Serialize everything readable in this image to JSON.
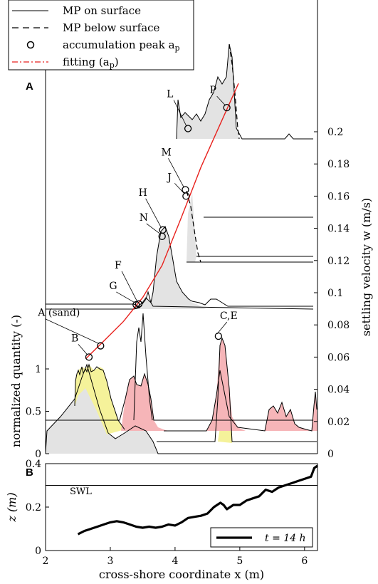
{
  "panel_a_label": "A",
  "panel_b_label": "B",
  "legend": {
    "items": [
      {
        "label": "MP on surface",
        "style": "solid",
        "color": "#000000"
      },
      {
        "label": "MP below surface",
        "style": "dashed",
        "color": "#000000"
      },
      {
        "label": "accumulation peak a",
        "sub": "p",
        "style": "circle",
        "color": "#000000"
      },
      {
        "label": "fitting (a",
        "sub": "p",
        "suffix": ")",
        "style": "dashdot",
        "color": "#e8211d"
      }
    ]
  },
  "colors": {
    "grey_fill": "#e3e3e3",
    "yellow_fill": "#f5f29a",
    "pink_fill": "#f6b5b8",
    "fit_line": "#e8211d"
  },
  "chart_data": [
    {
      "type": "area",
      "panel": "A",
      "xlabel": "",
      "ylabel_left": "normalized quantity (-)",
      "ylabel_right": "settling velocity w (m/s)",
      "xlim": [
        2,
        6.2
      ],
      "ylim_left": [
        0,
        1.3
      ],
      "yticks_left": [
        "0",
        "0.5",
        "1"
      ],
      "ylim_right": [
        0,
        0.22
      ],
      "yticks_right": [
        "0",
        "0.02",
        "0.04",
        "0.06",
        "0.08",
        "0.1",
        "0.12",
        "0.14",
        "0.16",
        "0.18",
        "0.2"
      ],
      "peak_labels": [
        {
          "label": "A (sand)",
          "x": 2.85,
          "w": 0.067
        },
        {
          "label": "B",
          "x": 2.67,
          "w": 0.06
        },
        {
          "label": "C,E",
          "x": 4.67,
          "w": 0.073
        },
        {
          "label": "F",
          "x": 3.44,
          "w": 0.093
        },
        {
          "label": "G",
          "x": 3.4,
          "w": 0.0925
        },
        {
          "label": "H",
          "x": 3.81,
          "w": 0.139
        },
        {
          "label": "N",
          "x": 3.8,
          "w": 0.135
        },
        {
          "label": "J",
          "x": 4.17,
          "w": 0.16
        },
        {
          "label": "M",
          "x": 4.16,
          "w": 0.164
        },
        {
          "label": "L",
          "x": 4.2,
          "w": 0.202
        },
        {
          "label": "P",
          "x": 4.8,
          "w": 0.215
        }
      ],
      "fit_curve": {
        "x": [
          2.62,
          2.9,
          3.2,
          3.5,
          3.8,
          4.1,
          4.4,
          4.7,
          4.98
        ],
        "w": [
          0.059,
          0.07,
          0.082,
          0.097,
          0.117,
          0.147,
          0.178,
          0.205,
          0.23
        ]
      }
    },
    {
      "type": "line",
      "panel": "B",
      "xlabel": "cross-shore coordinate x (m)",
      "ylabel": "z (m)",
      "xlim": [
        2,
        6.2
      ],
      "xticks": [
        "2",
        "3",
        "4",
        "5",
        "6"
      ],
      "ylim": [
        0,
        0.4
      ],
      "yticks": [
        "0",
        "0.2",
        "0.4"
      ],
      "swl_label": "SWL",
      "swl_level": 0.3,
      "legend_label": "t = 14 h",
      "series": [
        {
          "x": [
            2.5,
            2.6,
            2.7,
            2.8,
            2.9,
            3.0,
            3.1,
            3.2,
            3.3,
            3.4,
            3.5,
            3.6,
            3.7,
            3.8,
            3.9,
            4.0,
            4.1,
            4.2,
            4.3,
            4.4,
            4.5,
            4.6,
            4.65,
            4.7,
            4.75,
            4.8,
            4.9,
            5.0,
            5.1,
            5.2,
            5.3,
            5.4,
            5.5,
            5.6,
            5.7,
            5.8,
            5.9,
            6.0,
            6.1,
            6.15,
            6.2
          ],
          "y": [
            0.075,
            0.09,
            0.1,
            0.11,
            0.12,
            0.13,
            0.135,
            0.13,
            0.12,
            0.11,
            0.105,
            0.11,
            0.105,
            0.11,
            0.12,
            0.115,
            0.13,
            0.15,
            0.155,
            0.16,
            0.17,
            0.2,
            0.21,
            0.22,
            0.21,
            0.19,
            0.21,
            0.21,
            0.23,
            0.24,
            0.25,
            0.28,
            0.27,
            0.29,
            0.3,
            0.31,
            0.32,
            0.33,
            0.34,
            0.38,
            0.39
          ]
        }
      ]
    }
  ]
}
